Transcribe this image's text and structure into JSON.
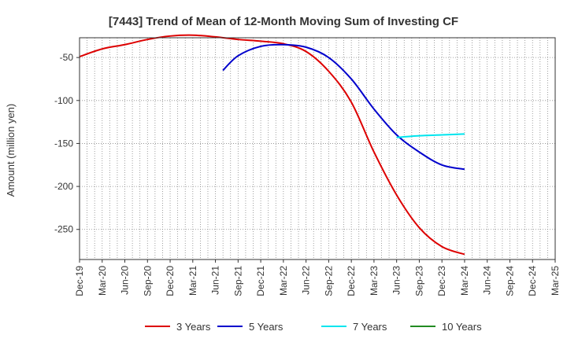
{
  "chart_data": {
    "type": "line",
    "title": "[7443]  Trend of Mean of 12-Month Moving Sum of Investing CF",
    "xlabel": "",
    "ylabel": "Amount (million yen)",
    "ylim": [
      -285,
      -27
    ],
    "yticks": [
      -50,
      -100,
      -150,
      -200,
      -250
    ],
    "categories": [
      "Dec-19",
      "Mar-20",
      "Jun-20",
      "Sep-20",
      "Dec-20",
      "Mar-21",
      "Jun-21",
      "Sep-21",
      "Dec-21",
      "Mar-22",
      "Jun-22",
      "Sep-22",
      "Dec-22",
      "Mar-23",
      "Jun-23",
      "Sep-23",
      "Dec-23",
      "Mar-24",
      "Jun-24",
      "Sep-24",
      "Dec-24",
      "Mar-25"
    ],
    "grid": true,
    "legend_position": "bottom",
    "series": [
      {
        "name": "3 Years",
        "color": "#dd0000",
        "x": [
          0,
          1,
          2,
          3,
          4,
          5,
          6,
          7,
          8,
          9,
          10,
          11,
          12,
          13,
          14,
          15,
          16,
          17
        ],
        "values": [
          -49,
          -40,
          -35,
          -29,
          -25,
          -24,
          -26,
          -29,
          -31,
          -34,
          -43,
          -66,
          -102,
          -160,
          -210,
          -248,
          -270,
          -279
        ]
      },
      {
        "name": "5 Years",
        "color": "#0000cc",
        "x": [
          6.33,
          7,
          8,
          9,
          10,
          11,
          12,
          13,
          14,
          15,
          16,
          17
        ],
        "values": [
          -65,
          -48,
          -37,
          -35,
          -38,
          -50,
          -75,
          -110,
          -140,
          -160,
          -175,
          -180
        ]
      },
      {
        "name": "7 Years",
        "color": "#00e5ee",
        "x": [
          14,
          15,
          16,
          17
        ],
        "values": [
          -143,
          -141,
          -140,
          -139
        ]
      },
      {
        "name": "10 Years",
        "color": "#228b22",
        "x": [],
        "values": []
      }
    ]
  }
}
